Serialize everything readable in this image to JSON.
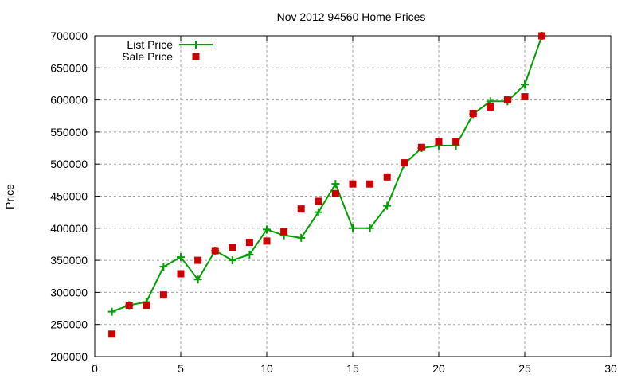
{
  "chart_data": {
    "type": "line",
    "title": "Nov 2012 94560 Home Prices",
    "xlabel": "",
    "ylabel": "Price",
    "xlim": [
      0,
      30
    ],
    "ylim": [
      200000,
      700000
    ],
    "xticks": [
      0,
      5,
      10,
      15,
      20,
      25,
      30
    ],
    "yticks": [
      200000,
      250000,
      300000,
      350000,
      400000,
      450000,
      500000,
      550000,
      600000,
      650000,
      700000
    ],
    "grid": true,
    "legend_position": "top-left",
    "x": [
      1,
      2,
      3,
      4,
      5,
      6,
      7,
      8,
      9,
      10,
      11,
      12,
      13,
      14,
      15,
      16,
      17,
      18,
      19,
      20,
      21,
      22,
      23,
      24,
      25,
      26
    ],
    "series": [
      {
        "name": "List Price",
        "style": "linespoints",
        "color": "#00a000",
        "values": [
          270000,
          280000,
          285000,
          340000,
          355000,
          320000,
          365000,
          350000,
          359000,
          398000,
          389000,
          385000,
          425000,
          469000,
          400000,
          400000,
          435000,
          500000,
          525000,
          529000,
          529000,
          578000,
          598000,
          598000,
          624000,
          700000
        ]
      },
      {
        "name": "Sale Price",
        "style": "points",
        "color": "#cc0000",
        "values": [
          235000,
          280000,
          280000,
          296000,
          329000,
          350000,
          365000,
          370000,
          378000,
          380000,
          395000,
          430000,
          442000,
          454000,
          469000,
          469000,
          480000,
          502000,
          526000,
          535000,
          535000,
          579000,
          589000,
          600000,
          605000,
          700000
        ]
      }
    ]
  }
}
